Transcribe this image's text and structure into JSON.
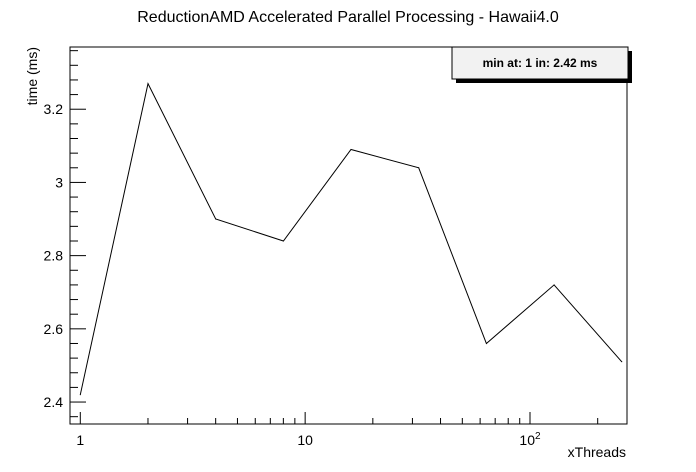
{
  "chart_data": {
    "type": "line",
    "title": "ReductionAMD Accelerated Parallel Processing - Hawaii4.0",
    "xlabel": "xThreads",
    "ylabel": "time (ms)",
    "x_scale": "log",
    "xlim": [
      0.9,
      270
    ],
    "ylim": [
      2.34,
      3.37
    ],
    "x_tick_labels": [
      {
        "value": 1,
        "label": "1"
      },
      {
        "value": 10,
        "label": "10"
      },
      {
        "value": 100,
        "label": "10",
        "sup": "2"
      }
    ],
    "y_ticks": [
      2.4,
      2.6,
      2.8,
      3,
      3.2
    ],
    "y_tick_labels": [
      "2.4",
      "2.6",
      "2.8",
      "3",
      "3.2"
    ],
    "series": [
      {
        "x": [
          1,
          2,
          4,
          8,
          16,
          32,
          64,
          128,
          256
        ],
        "values": [
          2.42,
          3.27,
          2.9,
          2.84,
          3.09,
          3.04,
          2.56,
          2.72,
          2.51
        ],
        "color": "#000000"
      }
    ],
    "annotation": "min at: 1 in: 2.42 ms",
    "grid": false
  }
}
